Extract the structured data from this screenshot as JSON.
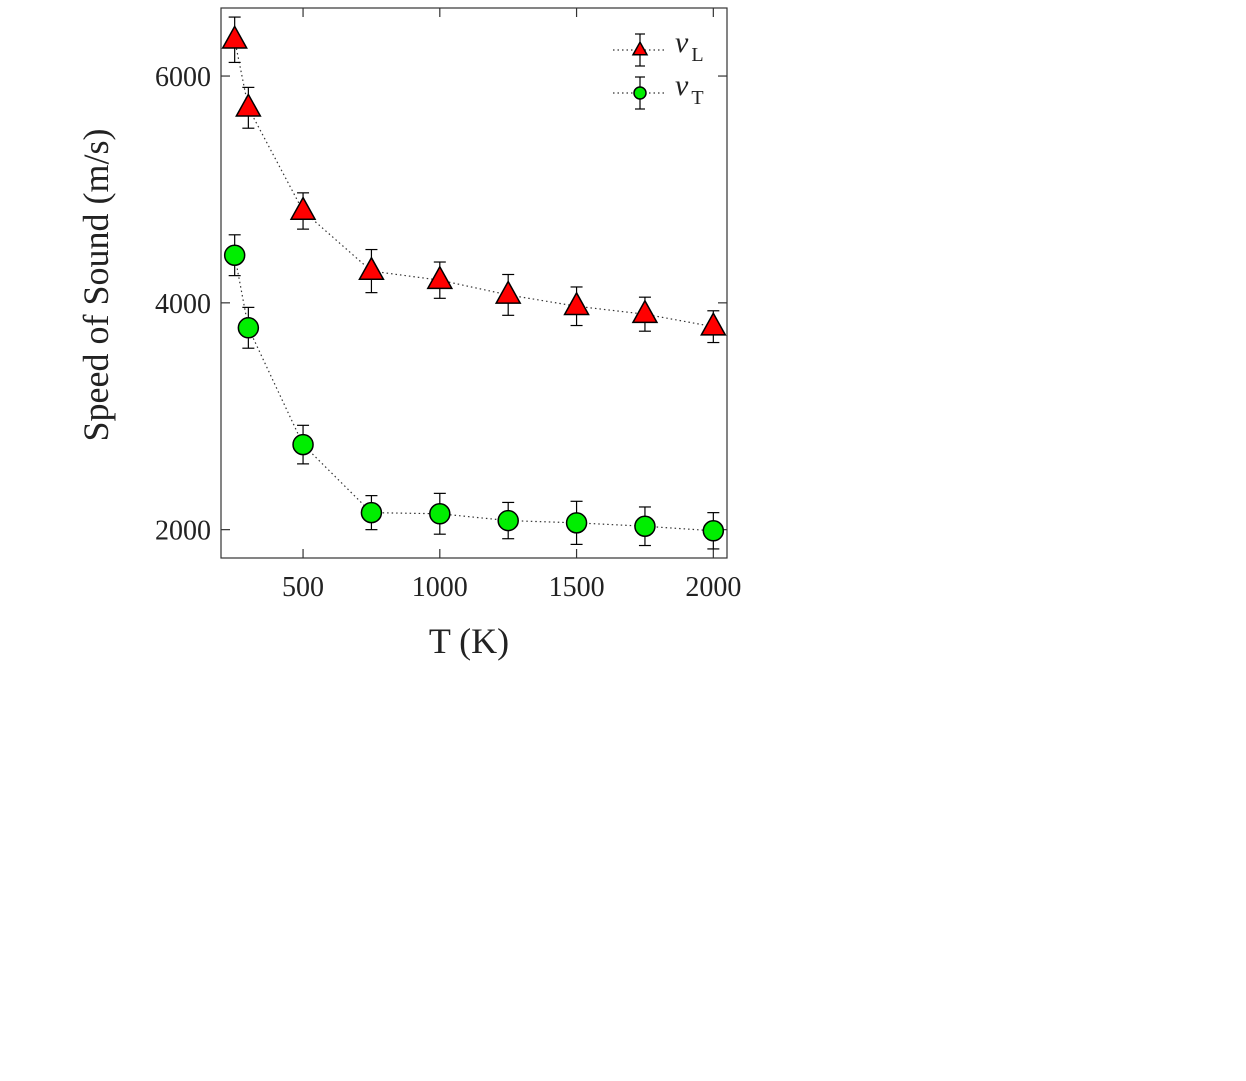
{
  "chart_data": {
    "type": "scatter",
    "xlabel": "T (K)",
    "ylabel": "Speed of Sound (m/s)",
    "xlim": [
      200,
      2050
    ],
    "ylim": [
      1750,
      6600
    ],
    "xticks": [
      500,
      1000,
      1500,
      2000
    ],
    "yticks": [
      2000,
      4000,
      6000
    ],
    "x": [
      250,
      300,
      500,
      750,
      1000,
      1250,
      1500,
      1750,
      2000
    ],
    "grid": false,
    "legend": "top-right",
    "series": [
      {
        "name": "v_L",
        "label_main": "v",
        "label_sub": "L",
        "marker": "triangle",
        "color": "#ff0000",
        "line": "dotted",
        "values": [
          6320,
          5720,
          4810,
          4280,
          4200,
          4070,
          3970,
          3900,
          3790
        ],
        "errors": [
          200,
          180,
          160,
          190,
          160,
          180,
          170,
          150,
          140
        ]
      },
      {
        "name": "v_T",
        "label_main": "v",
        "label_sub": "T",
        "marker": "circle",
        "color": "#00ee00",
        "line": "dotted",
        "values": [
          4420,
          3780,
          2750,
          2150,
          2140,
          2080,
          2060,
          2030,
          1990
        ],
        "errors": [
          180,
          180,
          170,
          150,
          180,
          160,
          190,
          170,
          160
        ]
      }
    ]
  }
}
